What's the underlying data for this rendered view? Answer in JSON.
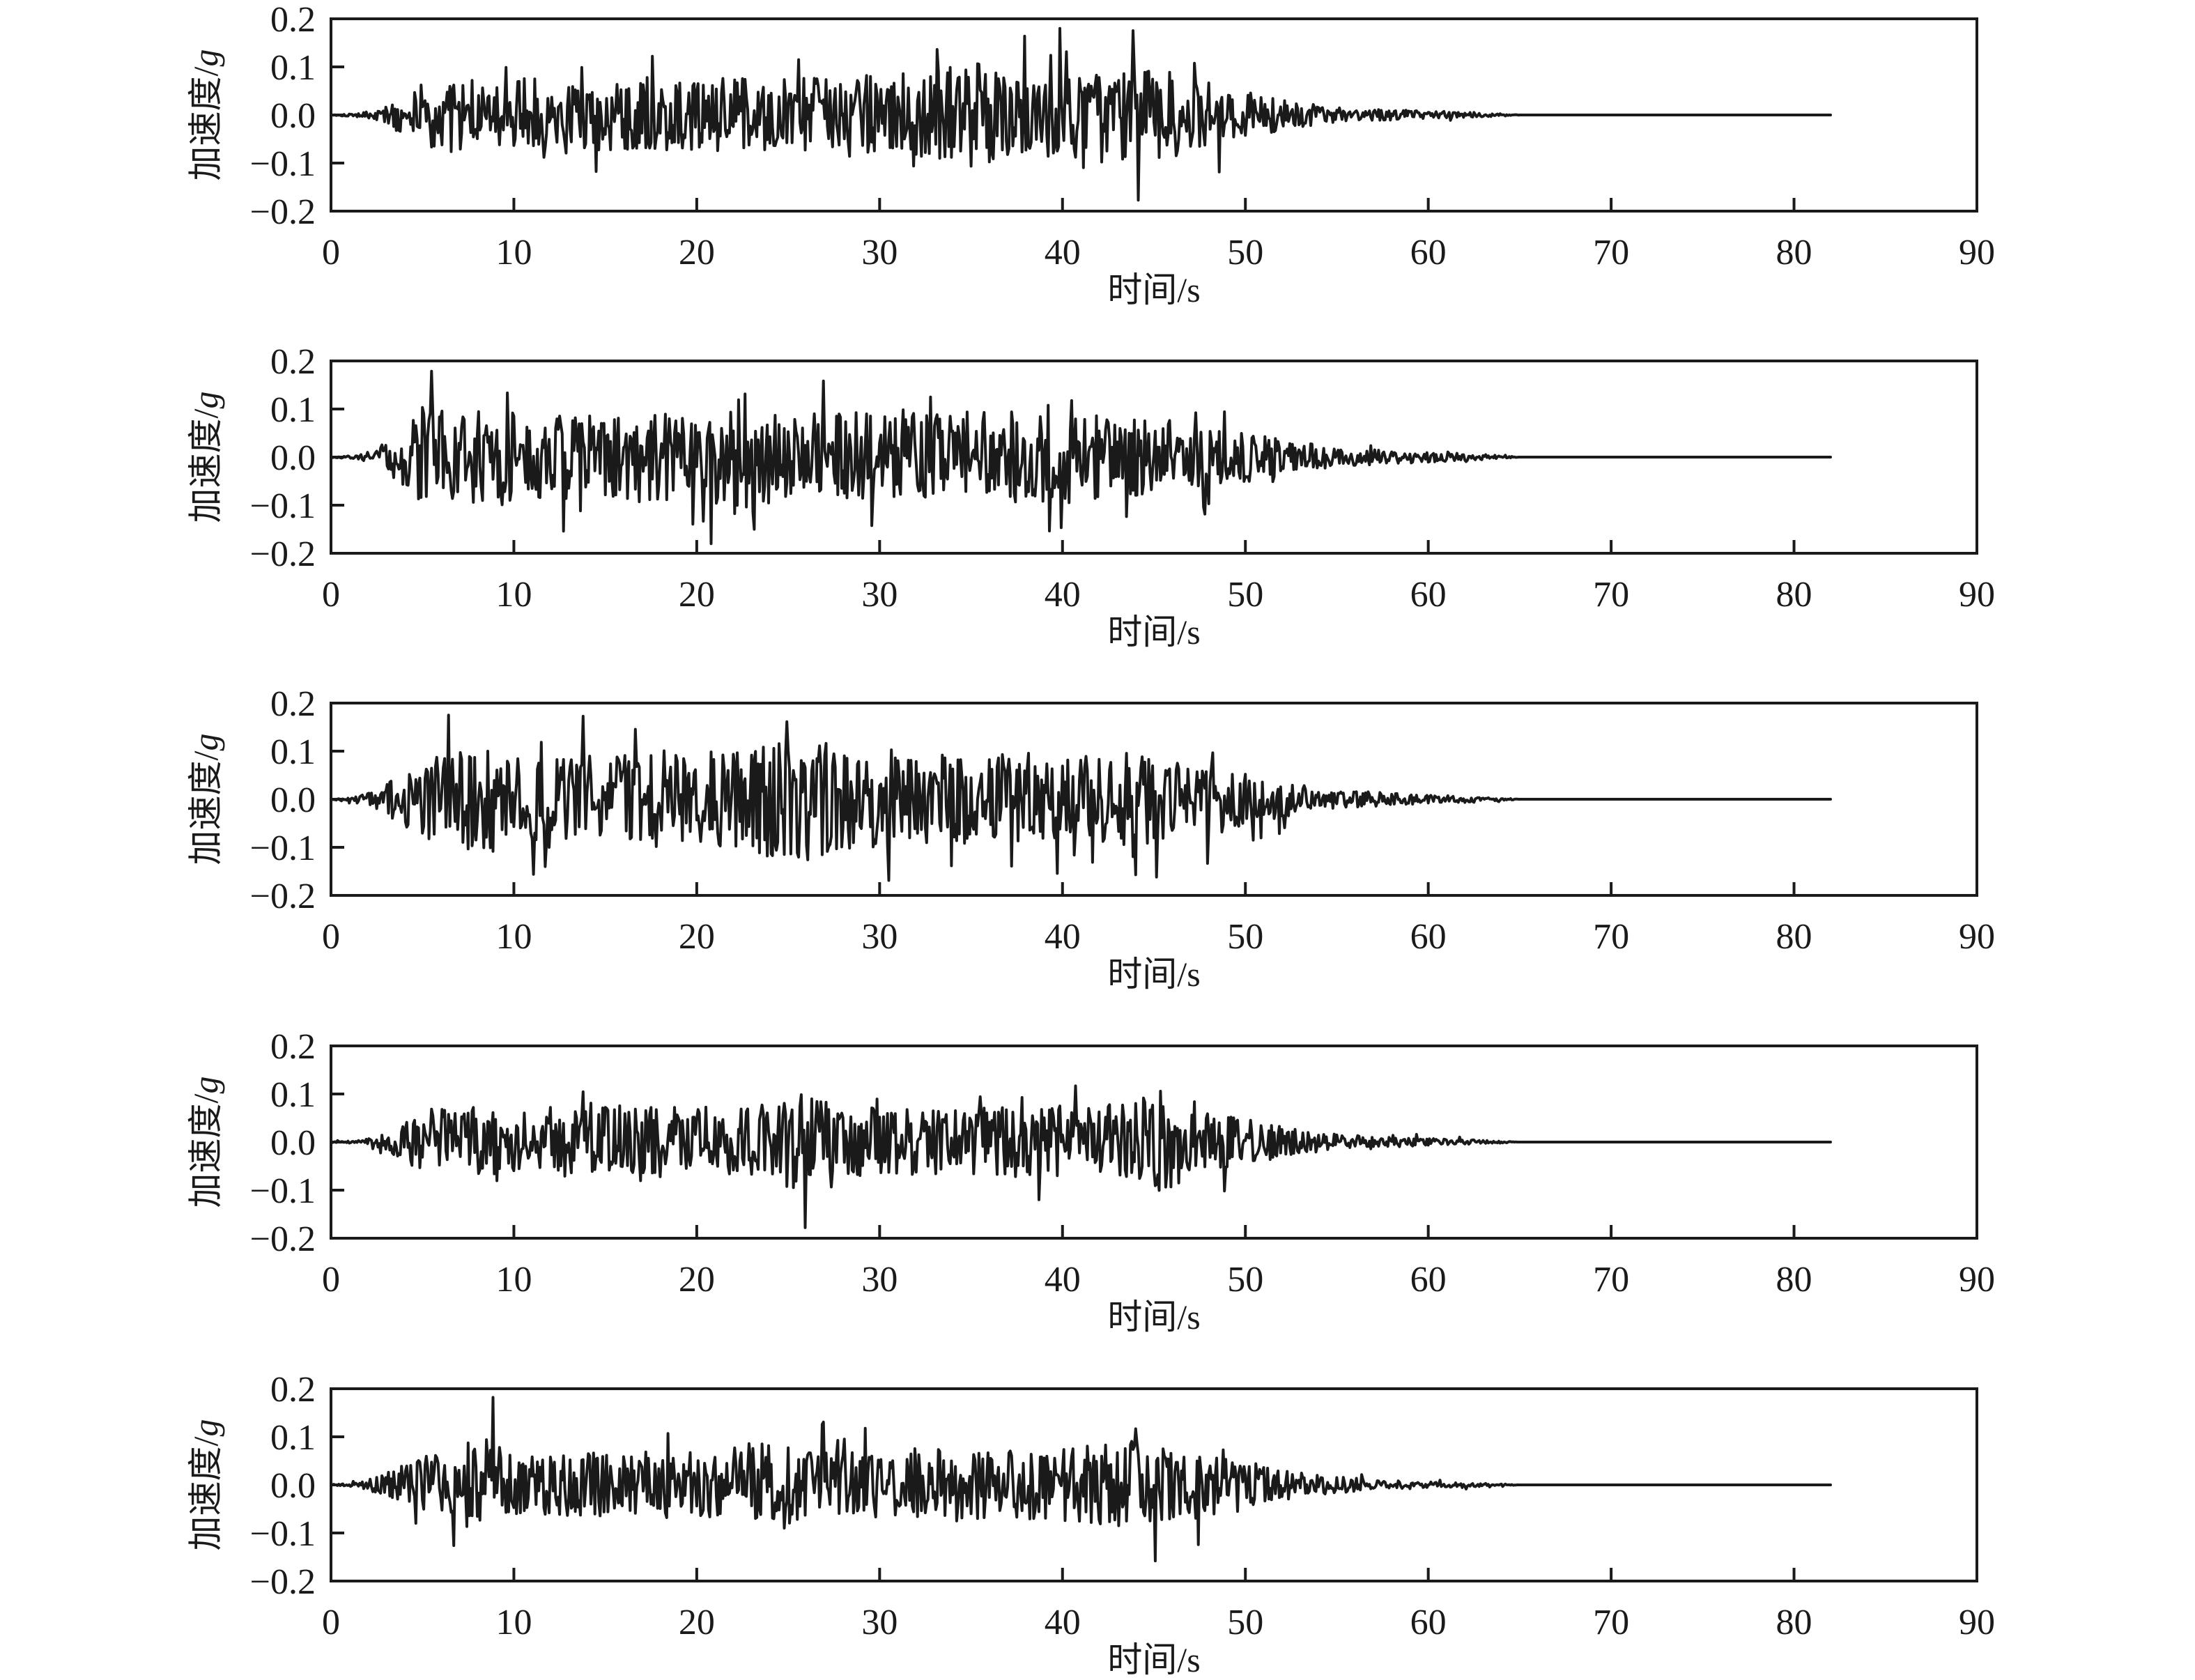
{
  "page": {
    "background": "#ffffff",
    "ink": "#1a1a1a",
    "description": "Five stacked acceleration time-history subplots of earthquake ground-motion records"
  },
  "chart_data": [
    {
      "type": "line",
      "panel": 1,
      "xlabel": "时间/s",
      "ylabel": "加速度/g",
      "ylabel_prefix": "加速度/",
      "ylabel_unit": "g",
      "xlim": [
        0,
        90
      ],
      "ylim": [
        -0.2,
        0.2
      ],
      "xticks": [
        0,
        10,
        20,
        30,
        40,
        50,
        60,
        70,
        80,
        90
      ],
      "yticks": [
        0.2,
        0.1,
        0.0,
        -0.1,
        -0.2
      ],
      "ytick_labels": [
        "0.2",
        "0.1",
        "0.0",
        "−0.1",
        "−0.2"
      ],
      "grid": false,
      "legend": null,
      "line_color": "#1a1a1a",
      "signal": {
        "kind": "synthetic-accelerogram",
        "seed": 101,
        "sample_rate_hz": 14,
        "motion_end_s": 65,
        "record_end_s": 82,
        "peak_abs_g": 0.18,
        "envelope_breakpoints": [
          [
            0,
            0.012
          ],
          [
            1.5,
            0.025
          ],
          [
            2.5,
            0.1
          ],
          [
            3.5,
            0.3
          ],
          [
            5,
            0.55
          ],
          [
            7,
            0.65
          ],
          [
            9,
            0.55
          ],
          [
            11,
            0.68
          ],
          [
            14,
            0.6
          ],
          [
            17,
            0.65
          ],
          [
            20,
            0.6
          ],
          [
            23,
            0.66
          ],
          [
            26,
            0.62
          ],
          [
            29,
            0.7
          ],
          [
            32,
            0.72
          ],
          [
            35,
            0.95
          ],
          [
            37,
            0.7
          ],
          [
            39,
            0.75
          ],
          [
            41,
            0.92
          ],
          [
            43,
            0.8
          ],
          [
            45,
            0.85
          ],
          [
            47,
            0.6
          ],
          [
            49,
            0.5
          ],
          [
            51,
            0.32
          ],
          [
            53,
            0.22
          ],
          [
            55,
            0.14
          ],
          [
            57,
            0.1
          ],
          [
            59,
            0.08
          ],
          [
            61,
            0.06
          ],
          [
            62.5,
            0.045
          ],
          [
            64,
            0.02
          ],
          [
            64.8,
            0.008
          ],
          [
            65,
            0
          ],
          [
            82,
            0
          ]
        ]
      }
    },
    {
      "type": "line",
      "panel": 2,
      "xlabel": "时间/s",
      "ylabel": "加速度/g",
      "ylabel_prefix": "加速度/",
      "ylabel_unit": "g",
      "xlim": [
        0,
        90
      ],
      "ylim": [
        -0.2,
        0.2
      ],
      "xticks": [
        0,
        10,
        20,
        30,
        40,
        50,
        60,
        70,
        80,
        90
      ],
      "yticks": [
        0.2,
        0.1,
        0.0,
        -0.1,
        -0.2
      ],
      "ytick_labels": [
        "0.2",
        "0.1",
        "0.0",
        "−0.1",
        "−0.2"
      ],
      "grid": false,
      "legend": null,
      "line_color": "#1a1a1a",
      "signal": {
        "kind": "synthetic-accelerogram",
        "seed": 202,
        "sample_rate_hz": 14,
        "motion_end_s": 65,
        "record_end_s": 82,
        "peak_abs_g": 0.18,
        "envelope_breakpoints": [
          [
            0,
            0.012
          ],
          [
            1.5,
            0.03
          ],
          [
            2.5,
            0.12
          ],
          [
            4,
            0.45
          ],
          [
            5,
            0.75
          ],
          [
            7,
            0.65
          ],
          [
            9,
            0.75
          ],
          [
            11,
            0.62
          ],
          [
            13,
            0.7
          ],
          [
            15,
            0.6
          ],
          [
            17,
            0.68
          ],
          [
            19,
            0.62
          ],
          [
            21,
            0.7
          ],
          [
            23,
            1.0
          ],
          [
            24,
            0.72
          ],
          [
            26,
            0.65
          ],
          [
            28,
            0.7
          ],
          [
            30,
            0.62
          ],
          [
            33,
            0.68
          ],
          [
            36,
            0.72
          ],
          [
            38,
            0.65
          ],
          [
            40,
            0.7
          ],
          [
            42,
            0.62
          ],
          [
            44,
            0.6
          ],
          [
            46,
            0.55
          ],
          [
            48,
            0.45
          ],
          [
            50,
            0.38
          ],
          [
            52,
            0.28
          ],
          [
            54,
            0.2
          ],
          [
            56,
            0.13
          ],
          [
            58,
            0.1
          ],
          [
            60,
            0.08
          ],
          [
            61.5,
            0.06
          ],
          [
            63,
            0.04
          ],
          [
            64.5,
            0.015
          ],
          [
            65,
            0
          ],
          [
            82,
            0
          ]
        ]
      }
    },
    {
      "type": "line",
      "panel": 3,
      "xlabel": "时间/s",
      "ylabel": "加速度/g",
      "ylabel_prefix": "加速度/",
      "ylabel_unit": "g",
      "xlim": [
        0,
        90
      ],
      "ylim": [
        -0.2,
        0.2
      ],
      "xticks": [
        0,
        10,
        20,
        30,
        40,
        50,
        60,
        70,
        80,
        90
      ],
      "yticks": [
        0.2,
        0.1,
        0.0,
        -0.1,
        -0.2
      ],
      "ytick_labels": [
        "0.2",
        "0.1",
        "0.0",
        "−0.1",
        "−0.2"
      ],
      "grid": false,
      "legend": null,
      "line_color": "#1a1a1a",
      "signal": {
        "kind": "synthetic-accelerogram",
        "seed": 303,
        "sample_rate_hz": 14,
        "motion_end_s": 65,
        "record_end_s": 82,
        "peak_abs_g": 0.175,
        "envelope_breakpoints": [
          [
            0,
            0.012
          ],
          [
            1.5,
            0.04
          ],
          [
            3,
            0.2
          ],
          [
            4.5,
            0.5
          ],
          [
            6,
            0.6
          ],
          [
            8,
            0.72
          ],
          [
            10,
            0.6
          ],
          [
            12,
            0.68
          ],
          [
            14,
            0.6
          ],
          [
            16,
            0.64
          ],
          [
            18,
            0.6
          ],
          [
            20,
            0.7
          ],
          [
            22,
            0.65
          ],
          [
            24,
            0.8
          ],
          [
            25.5,
            1.0
          ],
          [
            27,
            0.75
          ],
          [
            29,
            0.65
          ],
          [
            31,
            0.72
          ],
          [
            33,
            0.6
          ],
          [
            35,
            0.68
          ],
          [
            37,
            0.62
          ],
          [
            39,
            0.66
          ],
          [
            41,
            0.6
          ],
          [
            43,
            0.68
          ],
          [
            45,
            0.6
          ],
          [
            47,
            0.52
          ],
          [
            49,
            0.42
          ],
          [
            51,
            0.3
          ],
          [
            53,
            0.2
          ],
          [
            55,
            0.13
          ],
          [
            57,
            0.1
          ],
          [
            59,
            0.07
          ],
          [
            61,
            0.05
          ],
          [
            63,
            0.03
          ],
          [
            64.5,
            0.012
          ],
          [
            65,
            0
          ],
          [
            82,
            0
          ]
        ]
      }
    },
    {
      "type": "line",
      "panel": 4,
      "xlabel": "时间/s",
      "ylabel": "加速度/g",
      "ylabel_prefix": "加速度/",
      "ylabel_unit": "g",
      "xlim": [
        0,
        90
      ],
      "ylim": [
        -0.2,
        0.2
      ],
      "xticks": [
        0,
        10,
        20,
        30,
        40,
        50,
        60,
        70,
        80,
        90
      ],
      "yticks": [
        0.2,
        0.1,
        0.0,
        -0.1,
        -0.2
      ],
      "ytick_labels": [
        "0.2",
        "0.1",
        "0.0",
        "−0.1",
        "−0.2"
      ],
      "grid": false,
      "legend": null,
      "line_color": "#1a1a1a",
      "signal": {
        "kind": "synthetic-accelerogram",
        "seed": 404,
        "sample_rate_hz": 14,
        "motion_end_s": 65,
        "record_end_s": 82,
        "peak_abs_g": 0.178,
        "envelope_breakpoints": [
          [
            0,
            0.012
          ],
          [
            1.5,
            0.03
          ],
          [
            3,
            0.15
          ],
          [
            4.5,
            0.45
          ],
          [
            6,
            0.6
          ],
          [
            8,
            0.68
          ],
          [
            10,
            0.58
          ],
          [
            12,
            0.65
          ],
          [
            14,
            0.6
          ],
          [
            16,
            0.68
          ],
          [
            18,
            0.62
          ],
          [
            20,
            0.66
          ],
          [
            22,
            0.62
          ],
          [
            24,
            0.7
          ],
          [
            26,
            0.95
          ],
          [
            27.5,
            0.7
          ],
          [
            29,
            0.64
          ],
          [
            31,
            0.6
          ],
          [
            33,
            0.66
          ],
          [
            35,
            0.6
          ],
          [
            37,
            0.7
          ],
          [
            38.5,
            0.62
          ],
          [
            40,
            0.68
          ],
          [
            42,
            0.64
          ],
          [
            44,
            0.8
          ],
          [
            45.5,
            0.95
          ],
          [
            47,
            0.65
          ],
          [
            49,
            0.5
          ],
          [
            51,
            0.35
          ],
          [
            53,
            0.22
          ],
          [
            55,
            0.15
          ],
          [
            57,
            0.1
          ],
          [
            59,
            0.08
          ],
          [
            61,
            0.06
          ],
          [
            62.5,
            0.04
          ],
          [
            64,
            0.02
          ],
          [
            65,
            0
          ],
          [
            82,
            0
          ]
        ]
      }
    },
    {
      "type": "line",
      "panel": 5,
      "xlabel": "时间/s",
      "ylabel": "加速度/g",
      "ylabel_prefix": "加速度/",
      "ylabel_unit": "g",
      "xlim": [
        0,
        90
      ],
      "ylim": [
        -0.2,
        0.2
      ],
      "xticks": [
        0,
        10,
        20,
        30,
        40,
        50,
        60,
        70,
        80,
        90
      ],
      "yticks": [
        0.2,
        0.1,
        0.0,
        -0.1,
        -0.2
      ],
      "ytick_labels": [
        "0.2",
        "0.1",
        "0.0",
        "−0.1",
        "−0.2"
      ],
      "grid": false,
      "legend": null,
      "line_color": "#1a1a1a",
      "signal": {
        "kind": "synthetic-accelerogram",
        "seed": 505,
        "sample_rate_hz": 14,
        "motion_end_s": 65,
        "record_end_s": 82,
        "peak_abs_g": 0.182,
        "envelope_breakpoints": [
          [
            0,
            0.012
          ],
          [
            1.5,
            0.04
          ],
          [
            2.5,
            0.15
          ],
          [
            4,
            0.4
          ],
          [
            5.5,
            0.55
          ],
          [
            7,
            0.7
          ],
          [
            8.5,
            0.9
          ],
          [
            10,
            0.6
          ],
          [
            12,
            0.55
          ],
          [
            14,
            0.6
          ],
          [
            16,
            0.56
          ],
          [
            18,
            0.62
          ],
          [
            20,
            0.58
          ],
          [
            22,
            0.66
          ],
          [
            24,
            0.85
          ],
          [
            26,
            0.64
          ],
          [
            28,
            0.6
          ],
          [
            30,
            0.64
          ],
          [
            32,
            0.6
          ],
          [
            34,
            0.66
          ],
          [
            36,
            0.6
          ],
          [
            38,
            0.64
          ],
          [
            40,
            0.7
          ],
          [
            42,
            0.75
          ],
          [
            44,
            0.8
          ],
          [
            46,
            0.68
          ],
          [
            48,
            0.6
          ],
          [
            50,
            0.45
          ],
          [
            51.5,
            0.32
          ],
          [
            53,
            0.22
          ],
          [
            55,
            0.15
          ],
          [
            57,
            0.1
          ],
          [
            59,
            0.07
          ],
          [
            61,
            0.05
          ],
          [
            63,
            0.03
          ],
          [
            64.5,
            0.012
          ],
          [
            65,
            0
          ],
          [
            82,
            0
          ]
        ]
      }
    }
  ]
}
